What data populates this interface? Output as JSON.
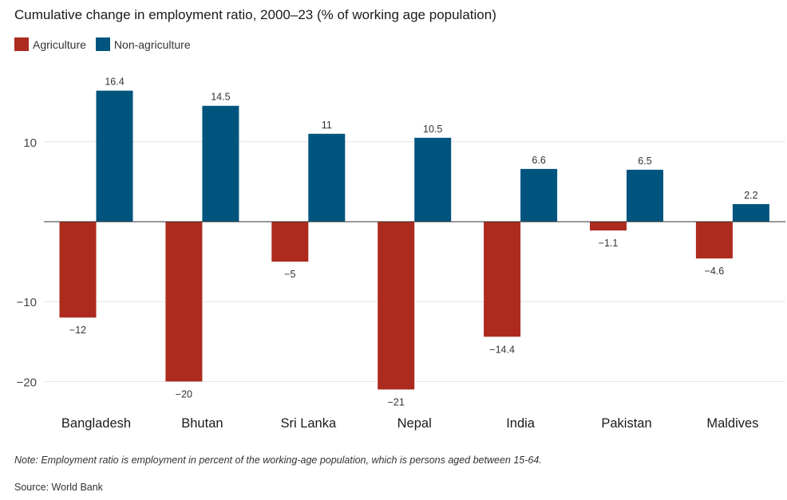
{
  "title": "Cumulative change in employment ratio, 2000–23 (% of working age population)",
  "note": "Note: Employment ratio is employment in percent of the working-age population, which is persons aged between 15-64.",
  "source": "Source: World Bank",
  "colors": {
    "agriculture": "#ad2a1e",
    "non_agriculture": "#00547e",
    "grid": "#e3e3e3",
    "axis": "#555555"
  },
  "chart_data": {
    "type": "bar",
    "title": "Cumulative change in employment ratio, 2000–23 (% of working age population)",
    "xlabel": "",
    "ylabel": "",
    "ylim": [
      -22,
      18
    ],
    "yticks": [
      10,
      -10,
      -20
    ],
    "ytick_labels": [
      "10",
      "−10",
      "−20"
    ],
    "categories": [
      "Bangladesh",
      "Bhutan",
      "Sri Lanka",
      "Nepal",
      "India",
      "Pakistan",
      "Maldives"
    ],
    "series": [
      {
        "name": "Agriculture",
        "values": [
          -12,
          -20,
          -5,
          -21,
          -14.4,
          -1.1,
          -4.6
        ],
        "labels": [
          "−12",
          "−20",
          "−5",
          "−21",
          "−14.4",
          "−1.1",
          "−4.6"
        ]
      },
      {
        "name": "Non-agriculture",
        "values": [
          16.4,
          14.5,
          11,
          10.5,
          6.6,
          6.5,
          2.2
        ],
        "labels": [
          "16.4",
          "14.5",
          "11",
          "10.5",
          "6.6",
          "6.5",
          "2.2"
        ]
      }
    ],
    "legend": "top-left",
    "grid": true
  }
}
